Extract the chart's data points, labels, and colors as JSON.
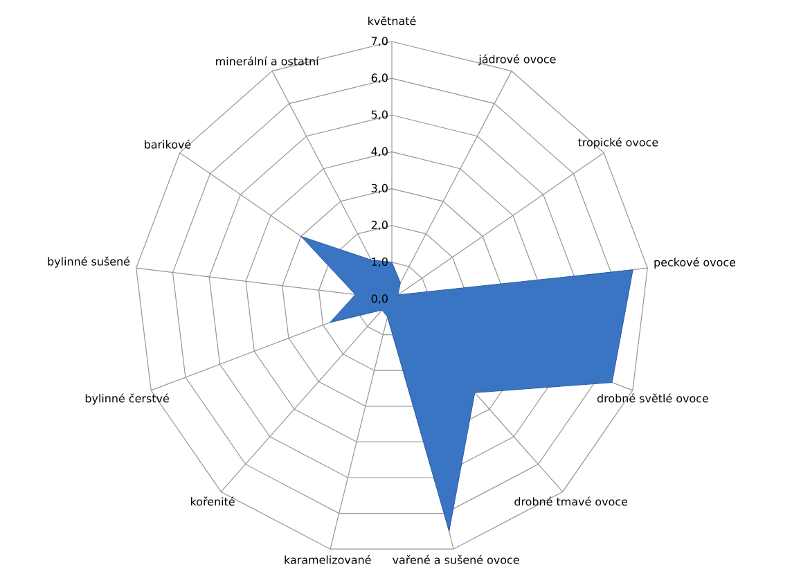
{
  "chart_data": {
    "type": "radar",
    "categories": [
      "květnaté",
      "jádrové ovoce",
      "tropické ovoce",
      "peckové ovoce",
      "drobné světlé ovoce",
      "drobné tmavé ovoce",
      "vařené a sušené ovoce",
      "karamelizované",
      "kořenité",
      "bylinné čerstvé",
      "bylinné sušené",
      "barikové",
      "minerální a ostatní"
    ],
    "series": [
      {
        "color": "#3a75c4",
        "values": [
          1.0,
          0.5,
          0.2,
          6.6,
          6.4,
          3.4,
          6.5,
          0.5,
          0.4,
          1.8,
          1.0,
          3.0,
          1.2
        ]
      }
    ],
    "ylim": [
      0,
      7
    ],
    "yticks": [
      {
        "value": 0,
        "label": "0,0"
      },
      {
        "value": 1,
        "label": "1,0"
      },
      {
        "value": 2,
        "label": "2,0"
      },
      {
        "value": 3,
        "label": "3,0"
      },
      {
        "value": 4,
        "label": "4,0"
      },
      {
        "value": 5,
        "label": "5,0"
      },
      {
        "value": 6,
        "label": "6,0"
      },
      {
        "value": 7,
        "label": "7,0"
      }
    ],
    "grid": true
  }
}
